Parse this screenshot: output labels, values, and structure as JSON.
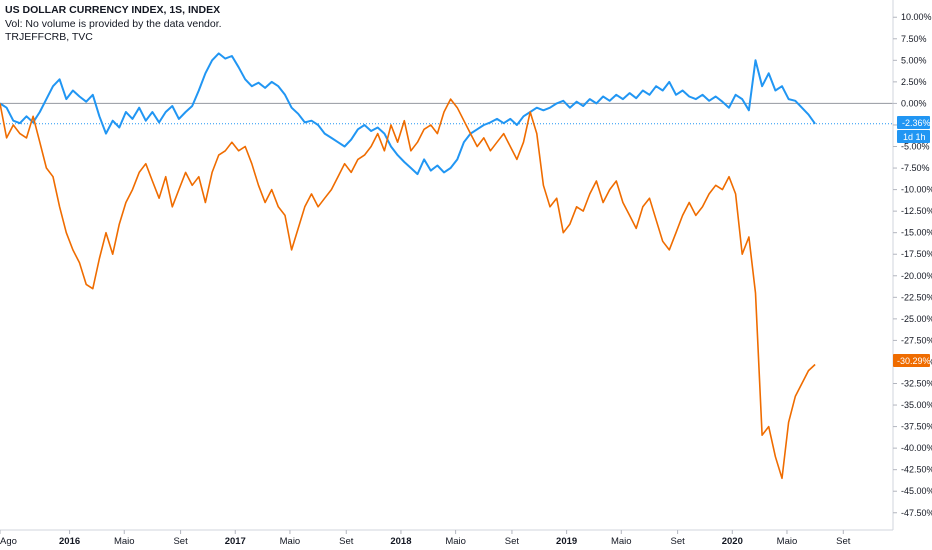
{
  "legend": {
    "title": "US DOLLAR CURRENCY INDEX, 1S, INDEX",
    "volume_note": "Vol: No volume is provided by the data vendor.",
    "comparison": "TRJEFFCRB, TVC"
  },
  "badges": {
    "dxy_value": "-2.36%",
    "dxy_countdown": "1d 1h",
    "crb_value": "-30.29%"
  },
  "chart_data": {
    "type": "line",
    "ylim": [
      -49.5,
      12.0
    ],
    "y_ticks": [
      10,
      7.5,
      5,
      2.5,
      0,
      -2.5,
      -5,
      -7.5,
      -10,
      -12.5,
      -15,
      -17.5,
      -20,
      -22.5,
      -25,
      -27.5,
      -30,
      -32.5,
      -35,
      -37.5,
      -40,
      -42.5,
      -45,
      -47.5
    ],
    "y_tick_labels": [
      "10.00%",
      "7.50%",
      "5.00%",
      "2.50%",
      "0.00%",
      "-2.50%",
      "-5.00%",
      "-7.50%",
      "-10.00%",
      "-12.50%",
      "-15.00%",
      "-17.50%",
      "-20.00%",
      "-22.50%",
      "-25.00%",
      "-27.50%",
      "-30.00%",
      "-32.50%",
      "-35.00%",
      "-37.50%",
      "-40.00%",
      "-42.50%",
      "-45.00%",
      "-47.50%"
    ],
    "xlim": [
      2015.58,
      2020.97
    ],
    "x_ticks": [
      {
        "x": 2015.58,
        "label": "Ago",
        "year": false
      },
      {
        "x": 2016.0,
        "label": "2016",
        "year": true
      },
      {
        "x": 2016.33,
        "label": "Maio",
        "year": false
      },
      {
        "x": 2016.67,
        "label": "Set",
        "year": false
      },
      {
        "x": 2017.0,
        "label": "2017",
        "year": true
      },
      {
        "x": 2017.33,
        "label": "Maio",
        "year": false
      },
      {
        "x": 2017.67,
        "label": "Set",
        "year": false
      },
      {
        "x": 2018.0,
        "label": "2018",
        "year": true
      },
      {
        "x": 2018.33,
        "label": "Maio",
        "year": false
      },
      {
        "x": 2018.67,
        "label": "Set",
        "year": false
      },
      {
        "x": 2019.0,
        "label": "2019",
        "year": true
      },
      {
        "x": 2019.33,
        "label": "Maio",
        "year": false
      },
      {
        "x": 2019.67,
        "label": "Set",
        "year": false
      },
      {
        "x": 2020.0,
        "label": "2020",
        "year": true
      },
      {
        "x": 2020.33,
        "label": "Maio",
        "year": false
      },
      {
        "x": 2020.67,
        "label": "Set",
        "year": false
      }
    ],
    "last_value_line": -2.36,
    "zero_line": 0,
    "series": [
      {
        "color": "#2196f3",
        "points": [
          [
            2015.58,
            0.0
          ],
          [
            2015.62,
            -0.5
          ],
          [
            2015.66,
            -2.0
          ],
          [
            2015.7,
            -2.3
          ],
          [
            2015.74,
            -1.5
          ],
          [
            2015.78,
            -2.2
          ],
          [
            2015.82,
            -1.0
          ],
          [
            2015.86,
            0.5
          ],
          [
            2015.9,
            2.0
          ],
          [
            2015.94,
            2.8
          ],
          [
            2015.98,
            0.5
          ],
          [
            2016.02,
            1.5
          ],
          [
            2016.06,
            0.8
          ],
          [
            2016.1,
            0.2
          ],
          [
            2016.14,
            1.0
          ],
          [
            2016.18,
            -1.5
          ],
          [
            2016.22,
            -3.5
          ],
          [
            2016.26,
            -2.0
          ],
          [
            2016.3,
            -2.8
          ],
          [
            2016.34,
            -1.0
          ],
          [
            2016.38,
            -1.8
          ],
          [
            2016.42,
            -0.5
          ],
          [
            2016.46,
            -2.0
          ],
          [
            2016.5,
            -1.0
          ],
          [
            2016.54,
            -2.2
          ],
          [
            2016.58,
            -1.0
          ],
          [
            2016.62,
            -0.3
          ],
          [
            2016.66,
            -1.8
          ],
          [
            2016.7,
            -1.0
          ],
          [
            2016.74,
            -0.3
          ],
          [
            2016.78,
            1.5
          ],
          [
            2016.82,
            3.5
          ],
          [
            2016.86,
            5.0
          ],
          [
            2016.9,
            5.8
          ],
          [
            2016.94,
            5.2
          ],
          [
            2016.98,
            5.5
          ],
          [
            2017.02,
            4.2
          ],
          [
            2017.06,
            2.8
          ],
          [
            2017.1,
            2.0
          ],
          [
            2017.14,
            2.4
          ],
          [
            2017.18,
            1.8
          ],
          [
            2017.22,
            2.5
          ],
          [
            2017.26,
            2.0
          ],
          [
            2017.3,
            1.0
          ],
          [
            2017.34,
            -0.5
          ],
          [
            2017.38,
            -1.2
          ],
          [
            2017.42,
            -2.2
          ],
          [
            2017.46,
            -2.0
          ],
          [
            2017.5,
            -2.5
          ],
          [
            2017.54,
            -3.5
          ],
          [
            2017.58,
            -4.0
          ],
          [
            2017.62,
            -4.5
          ],
          [
            2017.66,
            -5.0
          ],
          [
            2017.7,
            -4.2
          ],
          [
            2017.74,
            -3.0
          ],
          [
            2017.78,
            -2.5
          ],
          [
            2017.82,
            -3.2
          ],
          [
            2017.86,
            -2.8
          ],
          [
            2017.9,
            -3.5
          ],
          [
            2017.94,
            -5.0
          ],
          [
            2017.98,
            -6.0
          ],
          [
            2018.02,
            -6.8
          ],
          [
            2018.06,
            -7.5
          ],
          [
            2018.1,
            -8.2
          ],
          [
            2018.14,
            -6.5
          ],
          [
            2018.18,
            -7.8
          ],
          [
            2018.22,
            -7.2
          ],
          [
            2018.26,
            -8.0
          ],
          [
            2018.3,
            -7.5
          ],
          [
            2018.34,
            -6.5
          ],
          [
            2018.38,
            -4.5
          ],
          [
            2018.42,
            -3.5
          ],
          [
            2018.46,
            -3.0
          ],
          [
            2018.5,
            -2.5
          ],
          [
            2018.54,
            -2.2
          ],
          [
            2018.58,
            -1.8
          ],
          [
            2018.62,
            -2.3
          ],
          [
            2018.66,
            -1.8
          ],
          [
            2018.7,
            -2.5
          ],
          [
            2018.74,
            -1.5
          ],
          [
            2018.78,
            -1.0
          ],
          [
            2018.82,
            -0.5
          ],
          [
            2018.86,
            -0.8
          ],
          [
            2018.9,
            -0.5
          ],
          [
            2018.94,
            0.0
          ],
          [
            2018.98,
            0.3
          ],
          [
            2019.02,
            -0.5
          ],
          [
            2019.06,
            0.2
          ],
          [
            2019.1,
            -0.3
          ],
          [
            2019.14,
            0.5
          ],
          [
            2019.18,
            0.0
          ],
          [
            2019.22,
            0.8
          ],
          [
            2019.26,
            0.3
          ],
          [
            2019.3,
            1.0
          ],
          [
            2019.34,
            0.5
          ],
          [
            2019.38,
            1.2
          ],
          [
            2019.42,
            0.6
          ],
          [
            2019.46,
            1.5
          ],
          [
            2019.5,
            1.0
          ],
          [
            2019.54,
            2.0
          ],
          [
            2019.58,
            1.5
          ],
          [
            2019.62,
            2.5
          ],
          [
            2019.66,
            1.0
          ],
          [
            2019.7,
            1.5
          ],
          [
            2019.74,
            0.8
          ],
          [
            2019.78,
            0.5
          ],
          [
            2019.82,
            1.0
          ],
          [
            2019.86,
            0.3
          ],
          [
            2019.9,
            0.8
          ],
          [
            2019.94,
            0.2
          ],
          [
            2019.98,
            -0.5
          ],
          [
            2020.02,
            1.0
          ],
          [
            2020.06,
            0.5
          ],
          [
            2020.1,
            -0.8
          ],
          [
            2020.14,
            5.0
          ],
          [
            2020.18,
            2.0
          ],
          [
            2020.22,
            3.5
          ],
          [
            2020.26,
            1.5
          ],
          [
            2020.3,
            2.0
          ],
          [
            2020.34,
            0.5
          ],
          [
            2020.38,
            0.3
          ],
          [
            2020.42,
            -0.5
          ],
          [
            2020.46,
            -1.3
          ],
          [
            2020.5,
            -2.36
          ]
        ]
      },
      {
        "color": "#ef6c00",
        "points": [
          [
            2015.58,
            0.0
          ],
          [
            2015.62,
            -4.0
          ],
          [
            2015.66,
            -2.5
          ],
          [
            2015.7,
            -3.5
          ],
          [
            2015.74,
            -4.0
          ],
          [
            2015.78,
            -1.5
          ],
          [
            2015.82,
            -4.5
          ],
          [
            2015.86,
            -7.5
          ],
          [
            2015.9,
            -8.5
          ],
          [
            2015.94,
            -12.0
          ],
          [
            2015.98,
            -15.0
          ],
          [
            2016.02,
            -17.0
          ],
          [
            2016.06,
            -18.5
          ],
          [
            2016.1,
            -21.0
          ],
          [
            2016.14,
            -21.5
          ],
          [
            2016.18,
            -18.0
          ],
          [
            2016.22,
            -15.0
          ],
          [
            2016.26,
            -17.5
          ],
          [
            2016.3,
            -14.0
          ],
          [
            2016.34,
            -11.5
          ],
          [
            2016.38,
            -10.0
          ],
          [
            2016.42,
            -8.0
          ],
          [
            2016.46,
            -7.0
          ],
          [
            2016.5,
            -9.0
          ],
          [
            2016.54,
            -11.0
          ],
          [
            2016.58,
            -8.5
          ],
          [
            2016.62,
            -12.0
          ],
          [
            2016.66,
            -10.0
          ],
          [
            2016.7,
            -8.0
          ],
          [
            2016.74,
            -9.5
          ],
          [
            2016.78,
            -8.5
          ],
          [
            2016.82,
            -11.5
          ],
          [
            2016.86,
            -8.0
          ],
          [
            2016.9,
            -6.0
          ],
          [
            2016.94,
            -5.5
          ],
          [
            2016.98,
            -4.5
          ],
          [
            2017.02,
            -5.5
          ],
          [
            2017.06,
            -5.0
          ],
          [
            2017.1,
            -7.0
          ],
          [
            2017.14,
            -9.5
          ],
          [
            2017.18,
            -11.5
          ],
          [
            2017.22,
            -10.0
          ],
          [
            2017.26,
            -12.0
          ],
          [
            2017.3,
            -13.0
          ],
          [
            2017.34,
            -17.0
          ],
          [
            2017.38,
            -14.5
          ],
          [
            2017.42,
            -12.0
          ],
          [
            2017.46,
            -10.5
          ],
          [
            2017.5,
            -12.0
          ],
          [
            2017.54,
            -11.0
          ],
          [
            2017.58,
            -10.0
          ],
          [
            2017.62,
            -8.5
          ],
          [
            2017.66,
            -7.0
          ],
          [
            2017.7,
            -8.0
          ],
          [
            2017.74,
            -6.5
          ],
          [
            2017.78,
            -6.0
          ],
          [
            2017.82,
            -5.0
          ],
          [
            2017.86,
            -3.5
          ],
          [
            2017.9,
            -5.5
          ],
          [
            2017.94,
            -2.5
          ],
          [
            2017.98,
            -4.5
          ],
          [
            2018.02,
            -2.0
          ],
          [
            2018.06,
            -5.5
          ],
          [
            2018.1,
            -4.5
          ],
          [
            2018.14,
            -3.0
          ],
          [
            2018.18,
            -2.5
          ],
          [
            2018.22,
            -3.5
          ],
          [
            2018.26,
            -1.0
          ],
          [
            2018.3,
            0.5
          ],
          [
            2018.34,
            -0.5
          ],
          [
            2018.38,
            -2.0
          ],
          [
            2018.42,
            -3.5
          ],
          [
            2018.46,
            -5.0
          ],
          [
            2018.5,
            -4.0
          ],
          [
            2018.54,
            -5.5
          ],
          [
            2018.58,
            -4.5
          ],
          [
            2018.62,
            -3.5
          ],
          [
            2018.66,
            -5.0
          ],
          [
            2018.7,
            -6.5
          ],
          [
            2018.74,
            -4.5
          ],
          [
            2018.78,
            -1.0
          ],
          [
            2018.82,
            -3.5
          ],
          [
            2018.86,
            -9.5
          ],
          [
            2018.9,
            -12.0
          ],
          [
            2018.94,
            -11.0
          ],
          [
            2018.98,
            -15.0
          ],
          [
            2019.02,
            -14.0
          ],
          [
            2019.06,
            -12.0
          ],
          [
            2019.1,
            -12.5
          ],
          [
            2019.14,
            -10.5
          ],
          [
            2019.18,
            -9.0
          ],
          [
            2019.22,
            -11.5
          ],
          [
            2019.26,
            -10.0
          ],
          [
            2019.3,
            -9.0
          ],
          [
            2019.34,
            -11.5
          ],
          [
            2019.38,
            -13.0
          ],
          [
            2019.42,
            -14.5
          ],
          [
            2019.46,
            -12.0
          ],
          [
            2019.5,
            -11.0
          ],
          [
            2019.54,
            -13.5
          ],
          [
            2019.58,
            -16.0
          ],
          [
            2019.62,
            -17.0
          ],
          [
            2019.66,
            -15.0
          ],
          [
            2019.7,
            -13.0
          ],
          [
            2019.74,
            -11.5
          ],
          [
            2019.78,
            -13.0
          ],
          [
            2019.82,
            -12.0
          ],
          [
            2019.86,
            -10.5
          ],
          [
            2019.9,
            -9.5
          ],
          [
            2019.94,
            -10.0
          ],
          [
            2019.98,
            -8.5
          ],
          [
            2020.02,
            -10.5
          ],
          [
            2020.06,
            -17.5
          ],
          [
            2020.1,
            -15.5
          ],
          [
            2020.14,
            -22.0
          ],
          [
            2020.18,
            -38.5
          ],
          [
            2020.22,
            -37.5
          ],
          [
            2020.26,
            -41.0
          ],
          [
            2020.3,
            -43.5
          ],
          [
            2020.34,
            -37.0
          ],
          [
            2020.38,
            -34.0
          ],
          [
            2020.42,
            -32.5
          ],
          [
            2020.46,
            -31.0
          ],
          [
            2020.5,
            -30.29
          ]
        ]
      }
    ]
  }
}
